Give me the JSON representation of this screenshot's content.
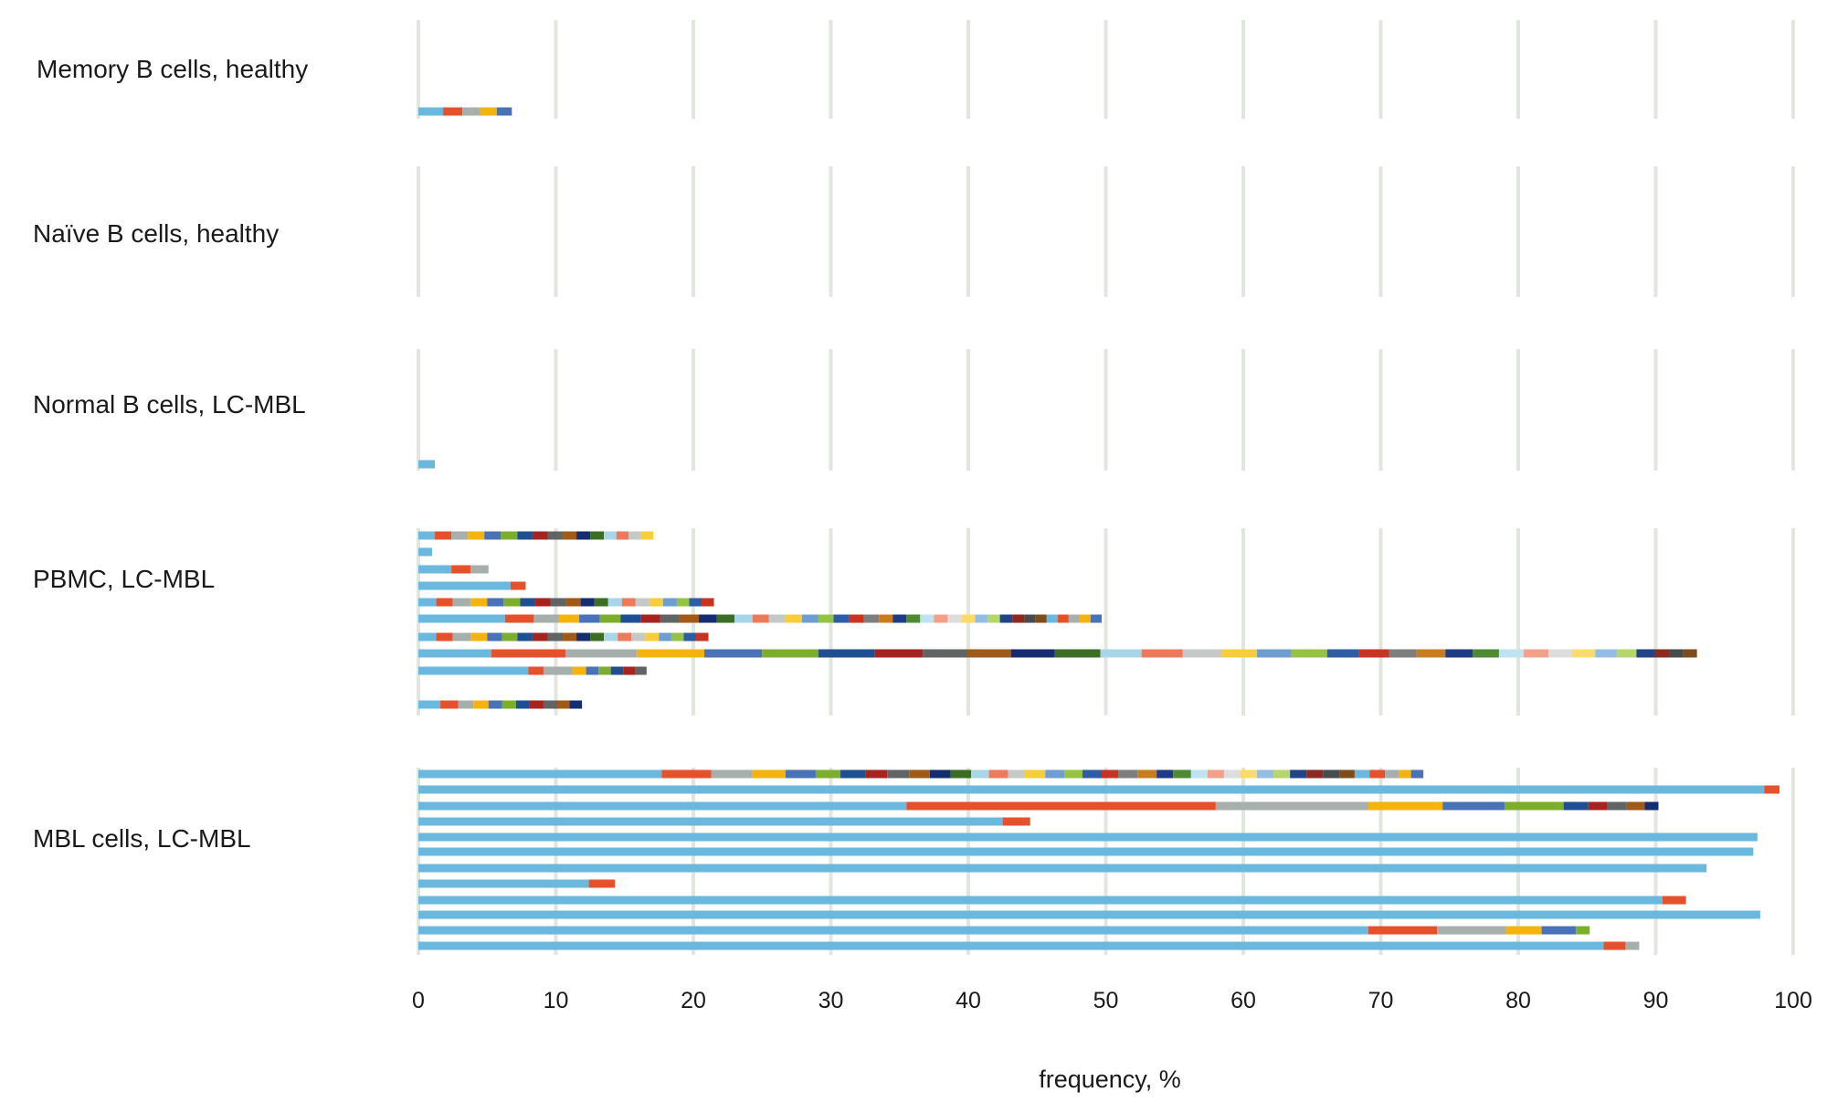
{
  "chart_data": {
    "type": "bar",
    "orientation": "horizontal",
    "stacked": true,
    "xlabel": "frequency, %",
    "xlim": [
      0,
      100
    ],
    "xticks": [
      "0",
      "10",
      "20",
      "30",
      "40",
      "50",
      "60",
      "70",
      "80",
      "90",
      "100"
    ],
    "grid": "vertical",
    "palette": [
      "#6ab8de",
      "#e4512b",
      "#a7afac",
      "#f5b30d",
      "#4a72b8",
      "#7cae2c",
      "#1f4f93",
      "#a62320",
      "#606464",
      "#9e5a16",
      "#152c70",
      "#3c6d24",
      "#a8d6e8",
      "#ed7a5b",
      "#c4c8c6",
      "#f7cd3b",
      "#6e9ed0",
      "#96c241",
      "#2e5da8",
      "#c93321",
      "#7d7f7e",
      "#c97c1e",
      "#1f3a86",
      "#4f8a32",
      "#bfe3f0",
      "#f2a08a",
      "#dcdedd",
      "#fadb6a",
      "#93bde2",
      "#b4d66b",
      "#204488",
      "#8a2a20",
      "#474b4b",
      "#7f4b18"
    ],
    "groups": [
      {
        "label": "Memory B cells, healthy",
        "bars": [
          [
            1.8,
            1.4,
            1.3,
            1.2,
            1.1
          ]
        ]
      },
      {
        "label": "Naïve B cells, healthy",
        "bars": []
      },
      {
        "label": "Normal B cells, LC-MBL",
        "bars": [
          [
            1.2
          ]
        ]
      },
      {
        "label": "PBMC, LC-MBL",
        "bars": [
          [
            1.2,
            1.2,
            1.2,
            1.2,
            1.2,
            1.2,
            1.1,
            1.1,
            1.1,
            1.0,
            1.0,
            1.0,
            0.9,
            0.9,
            0.9,
            0.9
          ],
          [
            1.0
          ],
          [
            2.4,
            1.4,
            1.3
          ],
          [
            6.7,
            1.1
          ],
          [
            1.3,
            1.2,
            1.3,
            1.2,
            1.2,
            1.2,
            1.1,
            1.1,
            1.1,
            1.1,
            1.0,
            1.0,
            1.0,
            1.0,
            1.0,
            1.0,
            1.0,
            0.9,
            0.9,
            0.9
          ],
          [
            6.3,
            2.1,
            1.8,
            1.5,
            1.5,
            1.5,
            1.5,
            1.4,
            1.4,
            1.4,
            1.3,
            1.3,
            1.3,
            1.2,
            1.2,
            1.2,
            1.2,
            1.1,
            1.1,
            1.1,
            1.1,
            1.0,
            1.0,
            1.0,
            1.0,
            1.0,
            1.0,
            1.0,
            0.9,
            0.9,
            0.9,
            0.9,
            0.8,
            0.8,
            0.8,
            0.8,
            0.8,
            0.8,
            0.8
          ],
          [
            1.3,
            1.2,
            1.3,
            1.2,
            1.1,
            1.1,
            1.1,
            1.1,
            1.1,
            1.0,
            1.0,
            1.0,
            1.0,
            1.0,
            1.0,
            1.0,
            0.9,
            0.9,
            0.9,
            0.9
          ],
          [
            5.3,
            5.4,
            5.2,
            4.9,
            4.2,
            4.1,
            4.1,
            3.5,
            3.2,
            3.2,
            3.2,
            3.3,
            3.0,
            3.0,
            2.8,
            2.6,
            2.5,
            2.6,
            2.3,
            2.2,
            2.0,
            2.1,
            2.0,
            1.9,
            1.8,
            1.8,
            1.7,
            1.7,
            1.6,
            1.4,
            1.3,
            1.1,
            1.0,
            1.0
          ],
          [
            8.0,
            1.1,
            2.1,
            1.0,
            0.9,
            0.9,
            0.9,
            0.9,
            0.8
          ],
          [
            1.6,
            1.3,
            1.1,
            1.1,
            1.0,
            1.0,
            1.0,
            1.0,
            1.0,
            0.9,
            0.9
          ]
        ]
      },
      {
        "label": "MBL cells, LC-MBL",
        "bars": [
          [
            17.7,
            3.6,
            3.0,
            2.4,
            2.2,
            1.8,
            1.8,
            1.6,
            1.6,
            1.5,
            1.5,
            1.5,
            1.3,
            1.4,
            1.2,
            1.5,
            1.4,
            1.3,
            1.4,
            1.2,
            1.4,
            1.4,
            1.2,
            1.3,
            1.2,
            1.2,
            1.2,
            1.2,
            1.2,
            1.2,
            1.2,
            1.2,
            1.2,
            1.1,
            1.1,
            1.1,
            1.0,
            0.9,
            0.9
          ],
          [
            97.9,
            1.1
          ],
          [
            35.5,
            22.5,
            11.1,
            5.4,
            4.5,
            4.3,
            1.8,
            1.4,
            1.4,
            1.3,
            1.0
          ],
          [
            42.5,
            2.0
          ],
          [
            97.4
          ],
          [
            97.1
          ],
          [
            93.7
          ],
          [
            12.4,
            1.9
          ],
          [
            90.5,
            1.7
          ],
          [
            97.6
          ],
          [
            69.1,
            5.0,
            5.0,
            2.6,
            2.5,
            1.0
          ],
          [
            86.2,
            1.6,
            1.0
          ]
        ]
      }
    ]
  }
}
